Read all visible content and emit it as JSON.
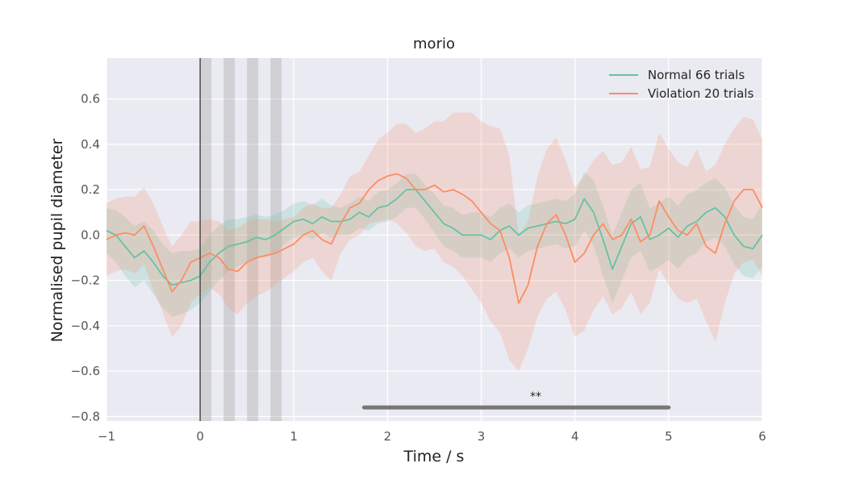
{
  "chart_data": {
    "type": "line",
    "title": "morio",
    "xlabel": "Time / s",
    "ylabel": "Normalised pupil diameter",
    "xlim": [
      -1,
      6
    ],
    "ylim": [
      -0.82,
      0.78
    ],
    "x_ticks": [
      -1,
      0,
      1,
      2,
      3,
      4,
      5,
      6
    ],
    "x_tick_labels": [
      "−1",
      "0",
      "1",
      "2",
      "3",
      "4",
      "5",
      "6"
    ],
    "y_ticks": [
      -0.8,
      -0.6,
      -0.4,
      -0.2,
      0.0,
      0.2,
      0.4,
      0.6
    ],
    "y_tick_labels": [
      "−0.8",
      "−0.6",
      "−0.4",
      "−0.2",
      "0.0",
      "0.2",
      "0.4",
      "0.6"
    ],
    "grid": true,
    "legend_position": "top-right",
    "background": "#eaeaf2",
    "event_line_x": 0,
    "shaded_intervals": [
      [
        0,
        0.12
      ],
      [
        0.25,
        0.37
      ],
      [
        0.5,
        0.62
      ],
      [
        0.75,
        0.87
      ]
    ],
    "significance": {
      "x_start": 1.75,
      "x_end": 5.0,
      "y": -0.76,
      "label": "**",
      "color": "#777777"
    },
    "x": [
      -1.0,
      -0.9,
      -0.8,
      -0.7,
      -0.6,
      -0.5,
      -0.4,
      -0.3,
      -0.2,
      -0.1,
      0.0,
      0.1,
      0.2,
      0.3,
      0.4,
      0.5,
      0.6,
      0.7,
      0.8,
      0.9,
      1.0,
      1.1,
      1.2,
      1.3,
      1.4,
      1.5,
      1.6,
      1.7,
      1.8,
      1.9,
      2.0,
      2.1,
      2.2,
      2.3,
      2.4,
      2.5,
      2.6,
      2.7,
      2.8,
      2.9,
      3.0,
      3.1,
      3.2,
      3.3,
      3.4,
      3.5,
      3.6,
      3.7,
      3.8,
      3.9,
      4.0,
      4.1,
      4.2,
      4.3,
      4.4,
      4.5,
      4.6,
      4.7,
      4.8,
      4.9,
      5.0,
      5.1,
      5.2,
      5.3,
      5.4,
      5.5,
      5.6,
      5.7,
      5.8,
      5.9,
      6.0
    ],
    "series": [
      {
        "name": "Normal 66 trials",
        "color": "#66c2a5",
        "values": [
          0.02,
          0.0,
          -0.05,
          -0.1,
          -0.07,
          -0.12,
          -0.18,
          -0.22,
          -0.21,
          -0.2,
          -0.18,
          -0.12,
          -0.08,
          -0.05,
          -0.04,
          -0.03,
          -0.01,
          -0.02,
          0.0,
          0.03,
          0.06,
          0.07,
          0.05,
          0.08,
          0.06,
          0.06,
          0.07,
          0.1,
          0.08,
          0.12,
          0.13,
          0.16,
          0.2,
          0.2,
          0.15,
          0.1,
          0.05,
          0.03,
          0.0,
          0.0,
          0.0,
          -0.02,
          0.02,
          0.04,
          0.0,
          0.03,
          0.04,
          0.05,
          0.06,
          0.05,
          0.07,
          0.16,
          0.1,
          -0.02,
          -0.15,
          -0.05,
          0.05,
          0.08,
          -0.02,
          0.0,
          0.03,
          -0.01,
          0.04,
          0.06,
          0.1,
          0.12,
          0.08,
          0.0,
          -0.05,
          -0.06,
          0.0
        ],
        "lower": [
          -0.08,
          -0.12,
          -0.18,
          -0.23,
          -0.2,
          -0.26,
          -0.32,
          -0.36,
          -0.35,
          -0.33,
          -0.3,
          -0.25,
          -0.2,
          -0.16,
          -0.14,
          -0.12,
          -0.1,
          -0.1,
          -0.08,
          -0.04,
          -0.01,
          0.0,
          -0.02,
          0.01,
          -0.01,
          0.0,
          0.0,
          0.03,
          0.02,
          0.05,
          0.06,
          0.08,
          0.12,
          0.12,
          0.07,
          0.01,
          -0.05,
          -0.07,
          -0.1,
          -0.1,
          -0.1,
          -0.12,
          -0.08,
          -0.06,
          -0.1,
          -0.07,
          -0.06,
          -0.05,
          -0.04,
          -0.06,
          -0.05,
          0.02,
          -0.05,
          -0.18,
          -0.3,
          -0.2,
          -0.1,
          -0.07,
          -0.16,
          -0.14,
          -0.11,
          -0.15,
          -0.1,
          -0.08,
          -0.03,
          -0.01,
          -0.05,
          -0.13,
          -0.18,
          -0.19,
          -0.14
        ],
        "upper": [
          0.12,
          0.11,
          0.08,
          0.04,
          0.06,
          0.02,
          -0.04,
          -0.08,
          -0.07,
          -0.07,
          -0.06,
          0.0,
          0.04,
          0.07,
          0.07,
          0.08,
          0.09,
          0.08,
          0.09,
          0.11,
          0.14,
          0.15,
          0.13,
          0.16,
          0.13,
          0.12,
          0.14,
          0.17,
          0.15,
          0.19,
          0.2,
          0.23,
          0.27,
          0.27,
          0.22,
          0.18,
          0.13,
          0.12,
          0.09,
          0.1,
          0.1,
          0.08,
          0.12,
          0.14,
          0.1,
          0.13,
          0.14,
          0.15,
          0.16,
          0.15,
          0.18,
          0.28,
          0.24,
          0.13,
          0.0,
          0.1,
          0.2,
          0.23,
          0.12,
          0.14,
          0.17,
          0.13,
          0.18,
          0.2,
          0.23,
          0.25,
          0.21,
          0.13,
          0.08,
          0.07,
          0.14
        ]
      },
      {
        "name": "Violation 20 trials",
        "color": "#fc8d62",
        "values": [
          -0.02,
          0.0,
          0.01,
          0.0,
          0.04,
          -0.05,
          -0.15,
          -0.25,
          -0.2,
          -0.12,
          -0.1,
          -0.08,
          -0.1,
          -0.15,
          -0.16,
          -0.12,
          -0.1,
          -0.09,
          -0.08,
          -0.06,
          -0.04,
          0.0,
          0.02,
          -0.02,
          -0.04,
          0.05,
          0.12,
          0.14,
          0.2,
          0.24,
          0.26,
          0.27,
          0.25,
          0.2,
          0.2,
          0.22,
          0.19,
          0.2,
          0.18,
          0.15,
          0.1,
          0.05,
          0.02,
          -0.1,
          -0.3,
          -0.22,
          -0.05,
          0.05,
          0.09,
          0.0,
          -0.12,
          -0.08,
          0.0,
          0.05,
          -0.02,
          0.0,
          0.07,
          -0.03,
          0.0,
          0.15,
          0.08,
          0.02,
          0.0,
          0.05,
          -0.05,
          -0.08,
          0.05,
          0.15,
          0.2,
          0.2,
          0.12
        ],
        "lower": [
          -0.18,
          -0.16,
          -0.15,
          -0.17,
          -0.13,
          -0.24,
          -0.34,
          -0.45,
          -0.4,
          -0.3,
          -0.26,
          -0.23,
          -0.26,
          -0.32,
          -0.35,
          -0.3,
          -0.27,
          -0.25,
          -0.22,
          -0.19,
          -0.16,
          -0.12,
          -0.1,
          -0.16,
          -0.2,
          -0.08,
          -0.02,
          0.0,
          0.05,
          0.06,
          0.07,
          0.05,
          0.01,
          -0.05,
          -0.07,
          -0.06,
          -0.12,
          -0.14,
          -0.18,
          -0.24,
          -0.3,
          -0.38,
          -0.43,
          -0.55,
          -0.6,
          -0.5,
          -0.36,
          -0.28,
          -0.25,
          -0.33,
          -0.45,
          -0.42,
          -0.33,
          -0.27,
          -0.35,
          -0.32,
          -0.25,
          -0.35,
          -0.3,
          -0.15,
          -0.22,
          -0.28,
          -0.3,
          -0.28,
          -0.38,
          -0.47,
          -0.3,
          -0.17,
          -0.12,
          -0.11,
          -0.18
        ],
        "upper": [
          0.14,
          0.16,
          0.17,
          0.17,
          0.21,
          0.14,
          0.04,
          -0.05,
          0.0,
          0.06,
          0.06,
          0.07,
          0.06,
          0.02,
          0.03,
          0.06,
          0.07,
          0.07,
          0.06,
          0.07,
          0.08,
          0.12,
          0.14,
          0.12,
          0.12,
          0.18,
          0.26,
          0.28,
          0.35,
          0.42,
          0.45,
          0.49,
          0.49,
          0.45,
          0.47,
          0.5,
          0.5,
          0.54,
          0.54,
          0.54,
          0.5,
          0.48,
          0.47,
          0.35,
          0.0,
          0.06,
          0.26,
          0.38,
          0.43,
          0.33,
          0.21,
          0.26,
          0.33,
          0.37,
          0.31,
          0.32,
          0.39,
          0.29,
          0.3,
          0.45,
          0.38,
          0.32,
          0.3,
          0.38,
          0.28,
          0.31,
          0.4,
          0.47,
          0.52,
          0.51,
          0.42
        ]
      }
    ]
  }
}
